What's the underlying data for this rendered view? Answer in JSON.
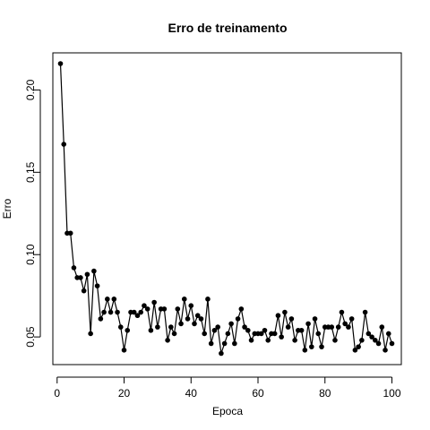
{
  "chart_data": {
    "type": "line",
    "title": "Erro de treinamento",
    "xlabel": "Epoca",
    "ylabel": "Erro",
    "xlim": [
      1,
      100
    ],
    "ylim": [
      0.04,
      0.216
    ],
    "xticks": [
      0,
      20,
      40,
      60,
      80,
      100
    ],
    "yticks": [
      0.05,
      0.1,
      0.15,
      0.2
    ],
    "xtick_labels": [
      "0",
      "20",
      "40",
      "60",
      "80",
      "100"
    ],
    "ytick_labels": [
      "0.05",
      "0.10",
      "0.15",
      "0.20"
    ],
    "grid": false,
    "legend": "none",
    "series": [
      {
        "line_color": "#000000",
        "marker": "filled-circle",
        "x": [
          1,
          2,
          3,
          4,
          5,
          6,
          7,
          8,
          9,
          10,
          11,
          12,
          13,
          14,
          15,
          16,
          17,
          18,
          19,
          20,
          21,
          22,
          23,
          24,
          25,
          26,
          27,
          28,
          29,
          30,
          31,
          32,
          33,
          34,
          35,
          36,
          37,
          38,
          39,
          40,
          41,
          42,
          43,
          44,
          45,
          46,
          47,
          48,
          49,
          50,
          51,
          52,
          53,
          54,
          55,
          56,
          57,
          58,
          59,
          60,
          61,
          62,
          63,
          64,
          65,
          66,
          67,
          68,
          69,
          70,
          71,
          72,
          73,
          74,
          75,
          76,
          77,
          78,
          79,
          80,
          81,
          82,
          83,
          84,
          85,
          86,
          87,
          88,
          89,
          90,
          91,
          92,
          93,
          94,
          95,
          96,
          97,
          98,
          99,
          100
        ],
        "y": [
          0.216,
          0.167,
          0.113,
          0.113,
          0.092,
          0.086,
          0.086,
          0.078,
          0.088,
          0.052,
          0.09,
          0.081,
          0.061,
          0.065,
          0.073,
          0.065,
          0.073,
          0.065,
          0.056,
          0.042,
          0.054,
          0.065,
          0.065,
          0.063,
          0.065,
          0.069,
          0.067,
          0.054,
          0.071,
          0.056,
          0.067,
          0.067,
          0.048,
          0.056,
          0.052,
          0.067,
          0.058,
          0.073,
          0.061,
          0.069,
          0.058,
          0.063,
          0.061,
          0.052,
          0.073,
          0.046,
          0.054,
          0.056,
          0.04,
          0.046,
          0.052,
          0.058,
          0.046,
          0.061,
          0.067,
          0.056,
          0.054,
          0.048,
          0.052,
          0.052,
          0.052,
          0.054,
          0.048,
          0.052,
          0.052,
          0.063,
          0.05,
          0.065,
          0.056,
          0.061,
          0.048,
          0.054,
          0.054,
          0.042,
          0.058,
          0.044,
          0.061,
          0.052,
          0.044,
          0.056,
          0.056,
          0.056,
          0.048,
          0.056,
          0.065,
          0.058,
          0.056,
          0.061,
          0.042,
          0.044,
          0.048,
          0.065,
          0.052,
          0.05,
          0.048,
          0.046,
          0.056,
          0.042,
          0.052,
          0.046
        ]
      }
    ]
  }
}
